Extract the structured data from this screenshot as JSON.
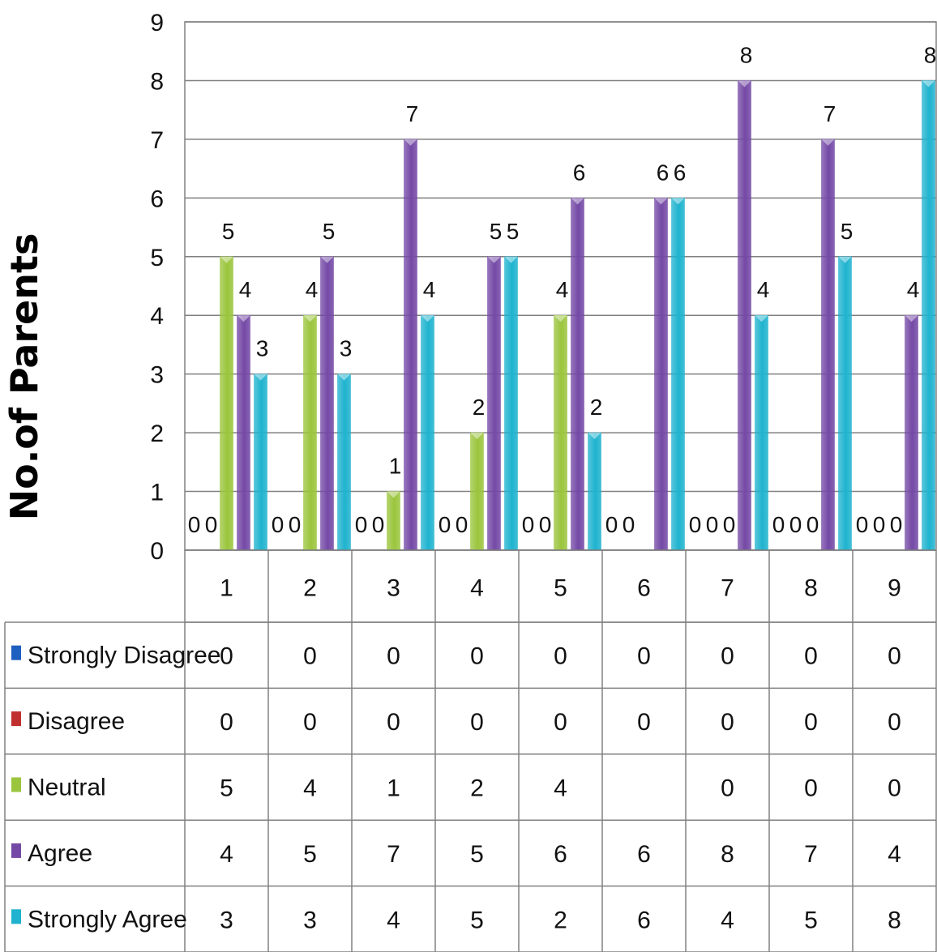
{
  "chart_data": {
    "type": "bar",
    "ylabel": "No.of Parents",
    "xlabel": "",
    "title": "",
    "ylim": [
      0,
      9
    ],
    "yticks": [
      0,
      1,
      2,
      3,
      4,
      5,
      6,
      7,
      8,
      9
    ],
    "grid": true,
    "legend": "data-table",
    "categories": [
      "1",
      "2",
      "3",
      "4",
      "5",
      "6",
      "7",
      "8",
      "9"
    ],
    "series": [
      {
        "name": "Strongly Disagree",
        "color": "#1f5fbf",
        "values": [
          0,
          0,
          0,
          0,
          0,
          0,
          0,
          0,
          0
        ]
      },
      {
        "name": "Disagree",
        "color": "#c0302e",
        "values": [
          0,
          0,
          0,
          0,
          0,
          0,
          0,
          0,
          0
        ]
      },
      {
        "name": "Neutral",
        "color": "#9bc53d",
        "values": [
          5,
          4,
          1,
          2,
          4,
          null,
          0,
          0,
          0
        ]
      },
      {
        "name": "Agree",
        "color": "#7449a6",
        "values": [
          4,
          5,
          7,
          5,
          6,
          6,
          8,
          7,
          4
        ]
      },
      {
        "name": "Strongly Agree",
        "color": "#1fb3cf",
        "values": [
          3,
          3,
          4,
          5,
          2,
          6,
          4,
          5,
          8
        ]
      }
    ]
  }
}
